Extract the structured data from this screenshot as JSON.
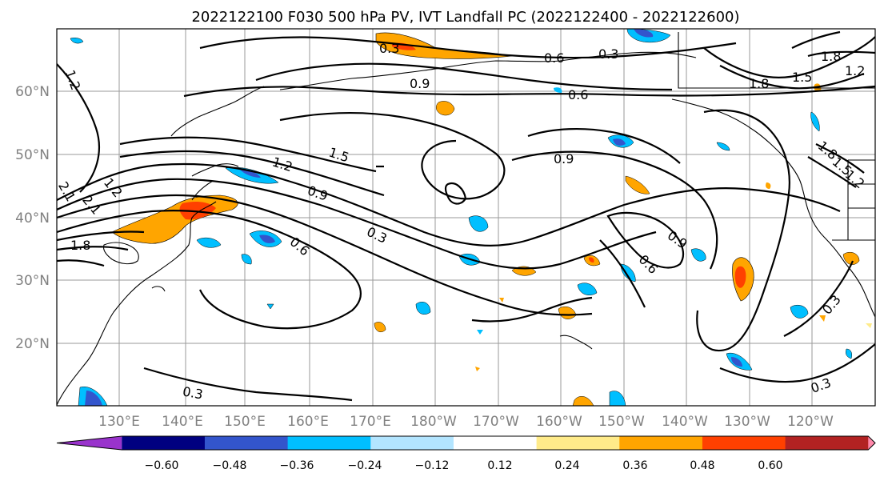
{
  "title": "2022122100 F030 500 hPa PV, IVT Landfall PC (2022122400 - 2022122600)",
  "lat_labels": [
    "60°N",
    "50°N",
    "40°N",
    "30°N",
    "20°N"
  ],
  "lon_labels": [
    "130°E",
    "140°E",
    "150°E",
    "160°E",
    "170°E",
    "180°W",
    "170°W",
    "160°W",
    "150°W",
    "140°W",
    "130°W",
    "120°W"
  ],
  "colorbar": {
    "colors": [
      "#9933cc",
      "#000080",
      "#3355cc",
      "#00bfff",
      "#b3e5ff",
      "#ffffff",
      "#ffeb8a",
      "#ffa500",
      "#ff4000",
      "#b22222",
      "#ff88aa"
    ],
    "tick_labels": [
      "−0.60",
      "−0.48",
      "−0.36",
      "−0.24",
      "−0.12",
      "0.12",
      "0.24",
      "0.36",
      "0.48",
      "0.60"
    ]
  },
  "contour_labels": [
    "0.3",
    "0.6",
    "0.3",
    "1.8",
    "1.5",
    "1.2",
    "1.2",
    "0.9",
    "0.6",
    "1.8",
    "1.5",
    "1.2",
    "0.9",
    "1.2",
    "2.1",
    "2.1",
    "1.8",
    "0.9",
    "0.3",
    "0.6",
    "0.9",
    "0.6",
    "0.3",
    "0.3",
    "1.8",
    "1.5",
    "1.2",
    "0.3"
  ]
}
